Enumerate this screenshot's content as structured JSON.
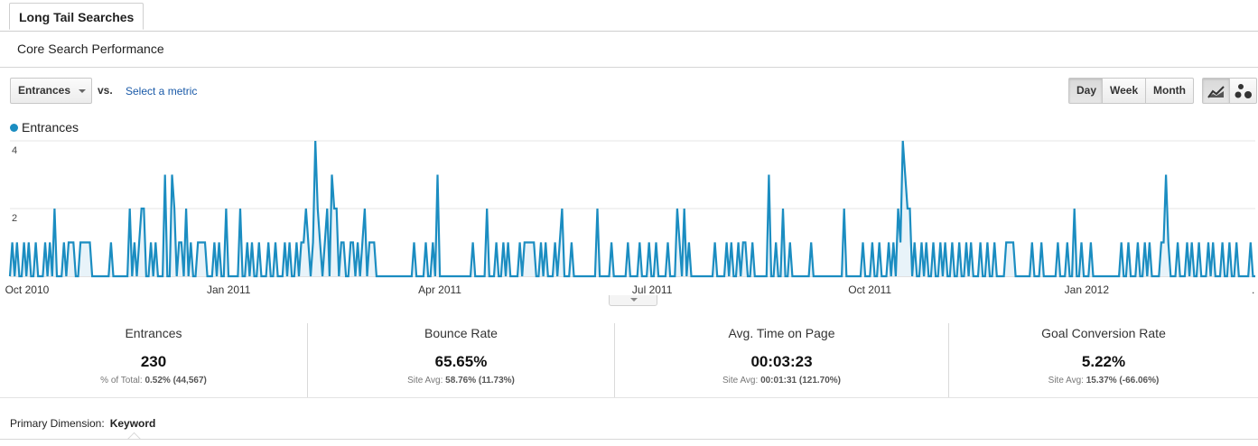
{
  "tab": {
    "label": "Long Tail Searches"
  },
  "subtitle": "Core Search Performance",
  "controls": {
    "metric_select": "Entrances",
    "vs_label": "vs.",
    "select_metric_link": "Select a metric",
    "granularity": [
      {
        "label": "Day",
        "active": true
      },
      {
        "label": "Week",
        "active": false
      },
      {
        "label": "Month",
        "active": false
      }
    ],
    "view_icons": [
      "line-chart-icon",
      "motion-chart-icon"
    ]
  },
  "legend": {
    "label": "Entrances",
    "color": "#1b8dc1"
  },
  "chart_data": {
    "type": "area",
    "series": [
      {
        "name": "Entrances",
        "color": "#1b8dc1",
        "x_start": "2010-09-30",
        "values": [
          0,
          1,
          0,
          1,
          0,
          0,
          1,
          0,
          1,
          0,
          0,
          1,
          0,
          0,
          0,
          1,
          0,
          1,
          0,
          2,
          0,
          0,
          0,
          1,
          0,
          1,
          1,
          1,
          0,
          0,
          1,
          1,
          1,
          1,
          1,
          0,
          0,
          0,
          0,
          0,
          0,
          0,
          0,
          1,
          0,
          0,
          0,
          0,
          0,
          0,
          0,
          2,
          0,
          1,
          0,
          1,
          2,
          2,
          0,
          0,
          1,
          0,
          1,
          0,
          0,
          0,
          3,
          0,
          0,
          3,
          2,
          0,
          1,
          1,
          0,
          2,
          0,
          1,
          0,
          0,
          1,
          1,
          1,
          1,
          0,
          0,
          0,
          1,
          0,
          1,
          0,
          0,
          2,
          0,
          0,
          0,
          0,
          0,
          2,
          0,
          0,
          1,
          0,
          1,
          0,
          0,
          1,
          0,
          0,
          0,
          1,
          0,
          0,
          1,
          0,
          0,
          0,
          1,
          0,
          1,
          0,
          0,
          1,
          0,
          1,
          1,
          2,
          1,
          0,
          1,
          4,
          2,
          1,
          0,
          1,
          2,
          0,
          3,
          2,
          2,
          0,
          1,
          1,
          0,
          0,
          1,
          1,
          0,
          1,
          0,
          1,
          2,
          0,
          1,
          1,
          1,
          0,
          0,
          0,
          0,
          0,
          0,
          0,
          0,
          0,
          0,
          0,
          0,
          0,
          0,
          0,
          0,
          1,
          0,
          0,
          0,
          0,
          1,
          0,
          0,
          1,
          0,
          3,
          0,
          0,
          0,
          0,
          0,
          0,
          0,
          0,
          0,
          0,
          0,
          0,
          0,
          0,
          1,
          0,
          0,
          0,
          0,
          0,
          2,
          0,
          0,
          0,
          1,
          0,
          0,
          1,
          0,
          1,
          0,
          0,
          0,
          0,
          1,
          0,
          1,
          1,
          1,
          1,
          1,
          0,
          0,
          1,
          0,
          1,
          0,
          0,
          0,
          1,
          0,
          1,
          2,
          0,
          0,
          0,
          1,
          0,
          0,
          0,
          0,
          0,
          0,
          0,
          0,
          0,
          0,
          2,
          0,
          0,
          0,
          0,
          0,
          1,
          0,
          0,
          0,
          0,
          0,
          0,
          1,
          0,
          0,
          0,
          0,
          1,
          0,
          0,
          0,
          1,
          0,
          0,
          1,
          0,
          0,
          0,
          0,
          1,
          0,
          0,
          0,
          2,
          1,
          0,
          2,
          0,
          1,
          0,
          0,
          0,
          0,
          0,
          0,
          0,
          0,
          0,
          0,
          1,
          0,
          0,
          0,
          0,
          1,
          0,
          1,
          0,
          0,
          1,
          0,
          1,
          1,
          0,
          0,
          1,
          0,
          0,
          0,
          0,
          0,
          0,
          3,
          0,
          0,
          1,
          0,
          0,
          2,
          0,
          0,
          1,
          0,
          0,
          0,
          0,
          0,
          0,
          0,
          0,
          1,
          0,
          0,
          0,
          0,
          0,
          0,
          0,
          0,
          0,
          0,
          0,
          0,
          0,
          2,
          0,
          0,
          0,
          0,
          0,
          0,
          0,
          1,
          0,
          0,
          0,
          1,
          0,
          0,
          1,
          0,
          0,
          0,
          1,
          0,
          1,
          0,
          2,
          1,
          4,
          3,
          2,
          2,
          0,
          1,
          0,
          0,
          1,
          0,
          1,
          0,
          0,
          1,
          0,
          0,
          1,
          0,
          1,
          0,
          0,
          1,
          0,
          0,
          1,
          0,
          0,
          1,
          0,
          1,
          0,
          0,
          0,
          1,
          0,
          0,
          1,
          0,
          0,
          1,
          0,
          0,
          0,
          0,
          1,
          1,
          1,
          1,
          0,
          0,
          0,
          0,
          0,
          0,
          0,
          1,
          0,
          0,
          0,
          1,
          0,
          0,
          0,
          0,
          0,
          0,
          1,
          0,
          0,
          0,
          1,
          0,
          0,
          2,
          0,
          0,
          1,
          0,
          0,
          0,
          1,
          0,
          0,
          0,
          0,
          0,
          0,
          0,
          0,
          0,
          0,
          0,
          0,
          1,
          0,
          0,
          1,
          0,
          0,
          0,
          1,
          0,
          0,
          1,
          0,
          1,
          0,
          0,
          0,
          0,
          1,
          1,
          3,
          1,
          0,
          0,
          0,
          1,
          0,
          0,
          0,
          1,
          0,
          1,
          0,
          0,
          1,
          0,
          0,
          0,
          1,
          0,
          1,
          0,
          0,
          0,
          1,
          0,
          0,
          1,
          0,
          0,
          1,
          0,
          0,
          0,
          0,
          0,
          1,
          0,
          0
        ]
      }
    ],
    "x_ticks": [
      "Oct 2010",
      "Jan 2011",
      "Apr 2011",
      "Jul 2011",
      "Oct 2011",
      "Jan 2012",
      "."
    ],
    "y_ticks": [
      2,
      4
    ],
    "ylim": [
      0,
      4
    ],
    "grid": true
  },
  "scorecards": [
    {
      "label": "Entrances",
      "value": "230",
      "sub_label": "% of Total:",
      "sub_value": "0.52% (44,567)"
    },
    {
      "label": "Bounce Rate",
      "value": "65.65%",
      "sub_label": "Site Avg:",
      "sub_value": "58.76% (11.73%)"
    },
    {
      "label": "Avg. Time on Page",
      "value": "00:03:23",
      "sub_label": "Site Avg:",
      "sub_value": "00:01:31 (121.70%)"
    },
    {
      "label": "Goal Conversion Rate",
      "value": "5.22%",
      "sub_label": "Site Avg:",
      "sub_value": "15.37% (-66.06%)"
    }
  ],
  "primary_dimension": {
    "label": "Primary Dimension:",
    "value": "Keyword"
  }
}
